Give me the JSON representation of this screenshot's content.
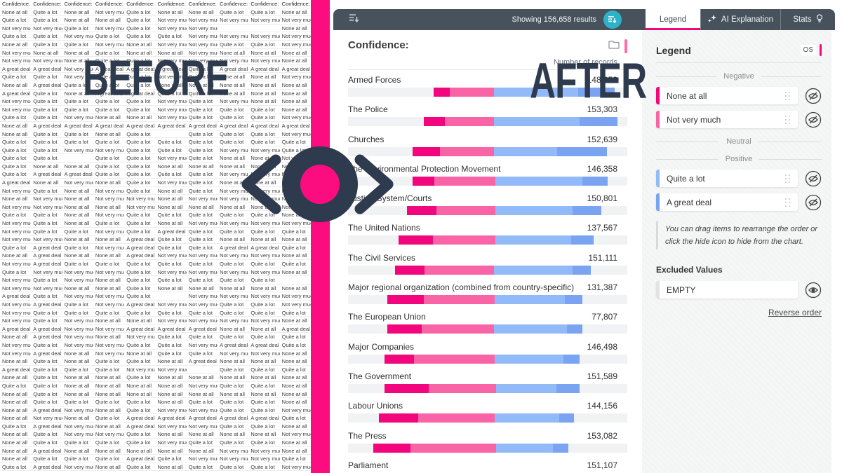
{
  "overlay": {
    "before": "BEFORE",
    "after": "AFTER"
  },
  "colors": {
    "band": "#FB0D80",
    "navy": "#2E3A4D",
    "toolbar": "#47525D",
    "teal": "#2DB3C7",
    "accent": "#F2087D",
    "segments": [
      "#F1067E",
      "#F964A7",
      "#92B9F8",
      "#7AA4F2"
    ]
  },
  "table": {
    "headers": [
      "Confidence: Chu",
      "Confidence: Arm",
      "Confidence: The",
      "Confidence: Lab",
      "Confidence: The",
      "Confidence: Par",
      "Confidence: The",
      "Confidence: Maj",
      "Confidence: The",
      "Confidence: The"
    ],
    "value_map": {
      "N": "None at all",
      "V": "Not very much",
      "Q": "Quite a lot",
      "G": "A great deal",
      "": ""
    },
    "rows": [
      [
        "N",
        "Q",
        "N",
        "V",
        "Q",
        "N",
        "N",
        "Q",
        "Q",
        "N"
      ],
      [
        "Q",
        "Q",
        "N",
        "N",
        "Q",
        "V",
        "V",
        "V",
        "V",
        "V"
      ],
      [
        "V",
        "V",
        "Q",
        "V",
        "Q",
        "V",
        "V",
        "",
        "",
        "N"
      ],
      [
        "Q",
        "Q",
        "V",
        "Q",
        "Q",
        "Q",
        "V",
        "V",
        "V",
        "V"
      ],
      [
        "N",
        "Q",
        "Q",
        "V",
        "N",
        "V",
        "V",
        "Q",
        "Q",
        "V"
      ],
      [
        "V",
        "N",
        "N",
        "Q",
        "N",
        "N",
        "V",
        "N",
        "N",
        "N"
      ],
      [
        "V",
        "V",
        "N",
        "Q",
        "Q",
        "V",
        "V",
        "V",
        "V",
        "N"
      ],
      [
        "G",
        "G",
        "V",
        "G",
        "G",
        "G",
        "Q",
        "G",
        "G",
        "G"
      ],
      [
        "Q",
        "Q",
        "V",
        "Q",
        "Q",
        "V",
        "Q",
        "N",
        "N",
        "V"
      ],
      [
        "N",
        "G",
        "Q",
        "Q",
        "Q",
        "N",
        "N",
        "N",
        "N",
        "N"
      ],
      [
        "G",
        "Q",
        "N",
        "G",
        "G",
        "Q",
        "Q",
        "N",
        "N",
        "N"
      ],
      [
        "V",
        "Q",
        "Q",
        "Q",
        "Q",
        "V",
        "Q",
        "V",
        "N",
        "N"
      ],
      [
        "V",
        "Q",
        "Q",
        "Q",
        "Q",
        "V",
        "Q",
        "Q",
        "Q",
        "N"
      ],
      [
        "Q",
        "Q",
        "V",
        "N",
        "N",
        "V",
        "Q",
        "Q",
        "Q",
        "V"
      ],
      [
        "N",
        "G",
        "G",
        "G",
        "G",
        "G",
        "G",
        "G",
        "G",
        "G"
      ],
      [
        "N",
        "Q",
        "Q",
        "N",
        "Q",
        "",
        "Q",
        "Q",
        "Q",
        "V"
      ],
      [
        "Q",
        "Q",
        "Q",
        "Q",
        "Q",
        "Q",
        "Q",
        "Q",
        "Q",
        "Q"
      ],
      [
        "Q",
        "Q",
        "V",
        "V",
        "Q",
        "Q",
        "Q",
        "V",
        "V",
        "Q"
      ],
      [
        "Q",
        "Q",
        "",
        "Q",
        "Q",
        "V",
        "Q",
        "N",
        "N",
        "V"
      ],
      [
        "Q",
        "N",
        "N",
        "Q",
        "Q",
        "N",
        "N",
        "N",
        "N",
        "N"
      ],
      [
        "Q",
        "G",
        "G",
        "Q",
        "Q",
        "Q",
        "Q",
        "V",
        "V",
        "V"
      ],
      [
        "G",
        "N",
        "V",
        "N",
        "Q",
        "V",
        "Q",
        "N",
        "N",
        "V"
      ],
      [
        "V",
        "Q",
        "N",
        "V",
        "Q",
        "N",
        "Q",
        "V",
        "V",
        "V"
      ],
      [
        "N",
        "V",
        "N",
        "V",
        "V",
        "N",
        "V",
        "V",
        "V",
        "N"
      ],
      [
        "V",
        "V",
        "N",
        "N",
        "V",
        "N",
        "N",
        "N",
        "N",
        "N"
      ],
      [
        "Q",
        "Q",
        "N",
        "V",
        "Q",
        "Q",
        "Q",
        "Q",
        "Q",
        "N"
      ],
      [
        "V",
        "Q",
        "N",
        "Q",
        "Q",
        "N",
        "V",
        "V",
        "V",
        "V"
      ],
      [
        "V",
        "Q",
        "Q",
        "V",
        "Q",
        "G",
        "Q",
        "Q",
        "Q",
        "Q"
      ],
      [
        "V",
        "V",
        "N",
        "N",
        "G",
        "Q",
        "Q",
        "N",
        "N",
        "N"
      ],
      [
        "Q",
        "G",
        "Q",
        "V",
        "G",
        "Q",
        "Q",
        "G",
        "G",
        "Q"
      ],
      [
        "N",
        "G",
        "N",
        "N",
        "G",
        "V",
        "V",
        "V",
        "V",
        "N"
      ],
      [
        "V",
        "G",
        "Q",
        "Q",
        "Q",
        "Q",
        "Q",
        "Q",
        "Q",
        "Q"
      ],
      [
        "Q",
        "V",
        "V",
        "V",
        "Q",
        "V",
        "V",
        "V",
        "V",
        "N"
      ],
      [
        "V",
        "Q",
        "V",
        "N",
        "Q",
        "Q",
        "Q",
        "Q",
        "Q",
        ""
      ],
      [
        "V",
        "V",
        "N",
        "N",
        "Q",
        "N",
        "N",
        "N",
        "N",
        "N"
      ],
      [
        "G",
        "Q",
        "V",
        "V",
        "Q",
        "",
        "V",
        "V",
        "V",
        "V"
      ],
      [
        "V",
        "G",
        "Q",
        "V",
        "G",
        "V",
        "V",
        "Q",
        "Q",
        "V"
      ],
      [
        "V",
        "Q",
        "Q",
        "Q",
        "Q",
        "Q",
        "Q",
        "Q",
        "Q",
        "Q"
      ],
      [
        "V",
        "Q",
        "V",
        "N",
        "N",
        "V",
        "V",
        "V",
        "V",
        "N"
      ],
      [
        "G",
        "G",
        "V",
        "V",
        "G",
        "G",
        "G",
        "N",
        "N",
        "G"
      ],
      [
        "N",
        "G",
        "V",
        "N",
        "V",
        "Q",
        "Q",
        "Q",
        "Q",
        "Q"
      ],
      [
        "V",
        "Q",
        "V",
        "V",
        "Q",
        "Q",
        "V",
        "G",
        "G",
        "Q"
      ],
      [
        "V",
        "G",
        "N",
        "V",
        "N",
        "Q",
        "Q",
        "V",
        "V",
        "N"
      ],
      [
        "N",
        "Q",
        "N",
        "Q",
        "Q",
        "N",
        "G",
        "N",
        "N",
        "N"
      ],
      [
        "G",
        "Q",
        "Q",
        "Q",
        "V",
        "V",
        "",
        "Q",
        "Q",
        "Q"
      ],
      [
        "N",
        "Q",
        "N",
        "N",
        "Q",
        "N",
        "N",
        "N",
        "N",
        "N"
      ],
      [
        "Q",
        "Q",
        "N",
        "N",
        "N",
        "N",
        "V",
        "Q",
        "Q",
        "N"
      ],
      [
        "N",
        "Q",
        "N",
        "N",
        "N",
        "N",
        "N",
        "N",
        "N",
        "N"
      ],
      [
        "N",
        "Q",
        "Q",
        "Q",
        "Q",
        "N",
        "Q",
        "Q",
        "Q",
        "N"
      ],
      [
        "N",
        "G",
        "V",
        "N",
        "Q",
        "V",
        "V",
        "Q",
        "Q",
        "V"
      ],
      [
        "N",
        "V",
        "N",
        "Q",
        "G",
        "G",
        "G",
        "G",
        "G",
        "Q"
      ],
      [
        "Q",
        "G",
        "V",
        "N",
        "G",
        "V",
        "V",
        "Q",
        "Q",
        "N"
      ],
      [
        "N",
        "Q",
        "V",
        "V",
        "Q",
        "N",
        "N",
        "N",
        "N",
        "V"
      ],
      [
        "N",
        "Q",
        "Q",
        "Q",
        "Q",
        "V",
        "Q",
        "Q",
        "Q",
        "N"
      ],
      [
        "N",
        "G",
        "N",
        "N",
        "N",
        "N",
        "N",
        "V",
        "V",
        "N"
      ],
      [
        "N",
        "Q",
        "Q",
        "Q",
        "G",
        "Q",
        "V",
        "V",
        "V",
        "Q"
      ],
      [
        "Q",
        "G",
        "V",
        "N",
        "Q",
        "N",
        "Q",
        "Q",
        "Q",
        "V"
      ]
    ]
  },
  "toolbar": {
    "results_text": "Showing 156,658 results",
    "icons": [
      "sort-descending-icon",
      "sort-refresh-icon"
    ],
    "tabs": [
      {
        "label": "Legend",
        "active": true
      },
      {
        "label": "AI Explanation",
        "icon": "sparkle-icon",
        "active": false
      },
      {
        "label": "Stats",
        "icon": "lightbulb-icon",
        "active": false
      }
    ]
  },
  "chart": {
    "title": "Confidence:",
    "axis_label": "Number of records",
    "rows": [
      {
        "label": "Armed Forces",
        "value": "148,953",
        "offset": 30.7,
        "segments": [
          5.8,
          15.8,
          30.2,
          13.1
        ]
      },
      {
        "label": "The Police",
        "value": "153,303",
        "offset": 27.1,
        "segments": [
          7.5,
          17.6,
          30.7,
          13.6
        ]
      },
      {
        "label": "Churches",
        "value": "152,639",
        "offset": 23.1,
        "segments": [
          9.8,
          19.3,
          22.6,
          17.8
        ]
      },
      {
        "label": "The Environmental Protection Movement",
        "value": "146,358",
        "offset": 23.1,
        "segments": [
          7.8,
          21.9,
          31.2,
          9.0
        ]
      },
      {
        "label": "Justice System/Courts",
        "value": "150,801",
        "offset": 21.1,
        "segments": [
          10.6,
          21.1,
          27.6,
          10.3
        ]
      },
      {
        "label": "The United Nations",
        "value": "137,567",
        "offset": 18.1,
        "segments": [
          12.3,
          22.4,
          27.1,
          8.0
        ]
      },
      {
        "label": "The Civil Services",
        "value": "151,111",
        "offset": 16.8,
        "segments": [
          10.6,
          24.9,
          28.1,
          6.5
        ]
      },
      {
        "label": "Major regional organization (combined from country-specific)",
        "value": "131,387",
        "offset": 14.1,
        "segments": [
          13.1,
          25.4,
          25.1,
          6.3
        ]
      },
      {
        "label": "The European Union",
        "value": "77,807",
        "offset": 14.1,
        "segments": [
          12.3,
          25.9,
          26.1,
          5.5
        ]
      },
      {
        "label": "Major Companies",
        "value": "146,498",
        "offset": 13.1,
        "segments": [
          10.6,
          28.9,
          24.6,
          5.8
        ]
      },
      {
        "label": "The Government",
        "value": "151,589",
        "offset": 13.1,
        "segments": [
          15.8,
          24.1,
          21.6,
          8.3
        ]
      },
      {
        "label": "Labour Unions",
        "value": "144,156",
        "offset": 11.1,
        "segments": [
          14.1,
          27.4,
          23.1,
          5.3
        ]
      },
      {
        "label": "The Press",
        "value": "153,082",
        "offset": 9.0,
        "segments": [
          13.3,
          30.7,
          20.4,
          5.5
        ]
      },
      {
        "label": "Parliament",
        "value": "151,107",
        "offset": 8.5,
        "segments": [
          14.0,
          29.0,
          21.0,
          6.0
        ]
      }
    ]
  },
  "chart_data": {
    "type": "bar",
    "orientation": "horizontal-stacked-diverging",
    "title": "Confidence:",
    "xlabel": "Number of records",
    "categories": [
      "Armed Forces",
      "The Police",
      "Churches",
      "The Environmental Protection Movement",
      "Justice System/Courts",
      "The United Nations",
      "The Civil Services",
      "Major regional organization (combined from country-specific)",
      "The European Union",
      "Major Companies",
      "The Government",
      "Labour Unions",
      "The Press",
      "Parliament"
    ],
    "totals": [
      148953,
      153303,
      152639,
      146358,
      150801,
      137567,
      151111,
      131387,
      77807,
      146498,
      151589,
      144156,
      153082,
      151107
    ],
    "series": [
      {
        "name": "None at all",
        "pct_of_axis": [
          5.8,
          7.5,
          9.8,
          7.8,
          10.6,
          12.3,
          10.6,
          13.1,
          12.3,
          10.6,
          15.8,
          14.1,
          13.3,
          14.0
        ]
      },
      {
        "name": "Not very much",
        "pct_of_axis": [
          15.8,
          17.6,
          19.3,
          21.9,
          21.1,
          22.4,
          24.9,
          25.4,
          25.9,
          28.9,
          24.1,
          27.4,
          30.7,
          29.0
        ]
      },
      {
        "name": "Quite a lot",
        "pct_of_axis": [
          30.2,
          30.7,
          22.6,
          31.2,
          27.6,
          27.1,
          28.1,
          25.1,
          26.1,
          24.6,
          21.6,
          23.1,
          20.4,
          21.0
        ]
      },
      {
        "name": "A great deal",
        "pct_of_axis": [
          13.1,
          13.6,
          17.8,
          9.0,
          10.3,
          8.0,
          6.5,
          6.3,
          5.5,
          5.8,
          8.3,
          5.3,
          5.5,
          6.0
        ]
      }
    ],
    "legend_position": "right-panel"
  },
  "legend_panel": {
    "title": "Legend",
    "badge": "OS",
    "sections": [
      {
        "label": "Negative",
        "items": [
          {
            "label": "None at all",
            "color": "#F1067E"
          },
          {
            "label": "Not very much",
            "color": "#F964A7"
          }
        ]
      },
      {
        "label": "Neutral",
        "items": []
      },
      {
        "label": "Positive",
        "items": [
          {
            "label": "Quite a lot",
            "color": "#92B9F8"
          },
          {
            "label": "A great deal",
            "color": "#7AA4F2"
          }
        ]
      }
    ],
    "hint": "You can drag items to rearrange the order or click the hide icon to hide from the chart.",
    "excluded_title": "Excluded Values",
    "excluded_items": [
      "EMPTY"
    ],
    "reverse_link": "Reverse order"
  }
}
